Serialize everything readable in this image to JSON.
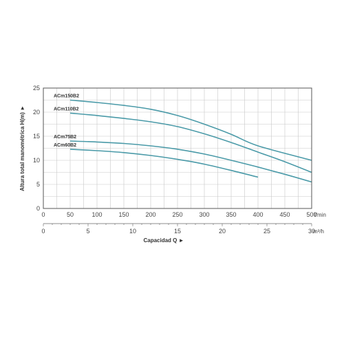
{
  "chart_data": {
    "type": "line",
    "ylabel": "Altura total manométrica H(m) ►",
    "xlabel": "Capacidad Q ►",
    "ylim": [
      0,
      25
    ],
    "yticks": [
      0,
      5,
      10,
      15,
      20,
      25
    ],
    "xlim": [
      0,
      500
    ],
    "xticks": [
      0,
      50,
      100,
      150,
      200,
      250,
      300,
      350,
      400,
      450,
      500
    ],
    "x_unit": "l/min",
    "x2_ticks": [
      0,
      5,
      10,
      15,
      20,
      25,
      30
    ],
    "x2_unit": "m³/h",
    "grid": true,
    "series": [
      {
        "name": "ACm150B2",
        "color": "#4a9aa8",
        "x": [
          50,
          100,
          150,
          200,
          250,
          300,
          350,
          400,
          500
        ],
        "y": [
          22.5,
          22.0,
          21.4,
          20.6,
          19.3,
          17.5,
          15.4,
          13.0,
          10.0
        ]
      },
      {
        "name": "ACm110B2",
        "color": "#4a9aa8",
        "x": [
          50,
          100,
          150,
          200,
          250,
          300,
          350,
          400,
          450,
          500
        ],
        "y": [
          19.8,
          19.3,
          18.7,
          18.0,
          17.0,
          15.5,
          13.7,
          11.7,
          9.7,
          7.5
        ]
      },
      {
        "name": "ACm75B2",
        "color": "#4a9aa8",
        "x": [
          50,
          100,
          150,
          200,
          250,
          300,
          350,
          400,
          450,
          500
        ],
        "y": [
          14.0,
          13.8,
          13.5,
          13.0,
          12.3,
          11.3,
          10.0,
          8.6,
          7.1,
          5.5
        ]
      },
      {
        "name": "ACm60B2",
        "color": "#4a9aa8",
        "x": [
          50,
          100,
          150,
          200,
          250,
          300,
          350,
          400
        ],
        "y": [
          12.3,
          12.0,
          11.6,
          11.0,
          10.2,
          9.2,
          7.9,
          6.5
        ]
      }
    ]
  }
}
